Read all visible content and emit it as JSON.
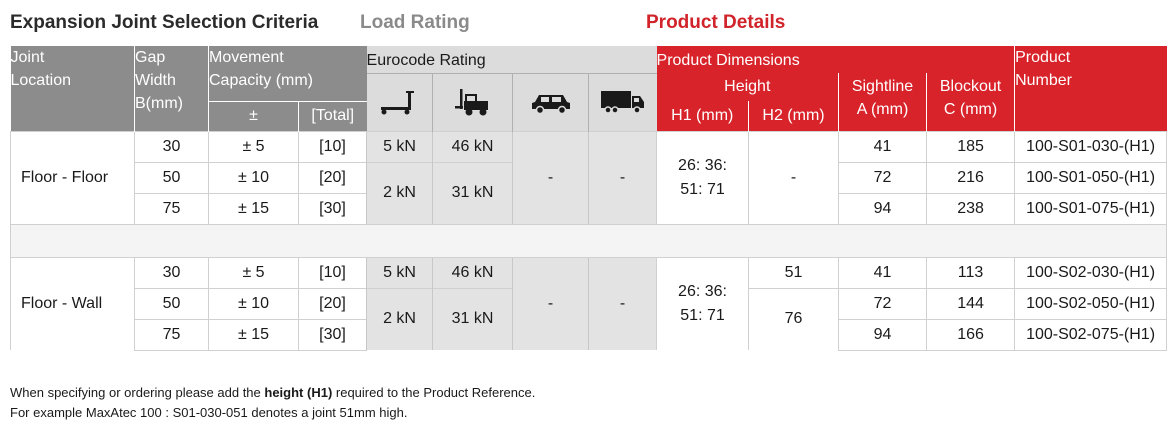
{
  "sections": {
    "selection": "Expansion Joint Selection Criteria",
    "load": "Load Rating",
    "product": "Product Details"
  },
  "header": {
    "joint_location": [
      "Joint",
      "Location"
    ],
    "gap_width": [
      "Gap",
      "Width",
      "B(mm)"
    ],
    "movement": [
      "Movement",
      "Capacity (mm)"
    ],
    "movement_pm": "±",
    "movement_total": "[Total]",
    "eurocode": "Eurocode Rating",
    "product_dimensions": "Product Dimensions",
    "height": "Height",
    "h1": "H1 (mm)",
    "h2": "H2 (mm)",
    "sightline": [
      "Sightline",
      "A (mm)"
    ],
    "blockout": [
      "Blockout",
      "C (mm)"
    ],
    "product_number": [
      "Product",
      "Number"
    ],
    "icons": [
      "pallet-truck-icon",
      "forklift-icon",
      "car-icon",
      "truck-icon"
    ]
  },
  "groups": [
    {
      "location": "Floor - Floor",
      "rating_a": {
        "r1": "5 kN",
        "r2": "46 kN"
      },
      "rating_b": {
        "r1": "2 kN",
        "r2": "31 kN"
      },
      "car": "-",
      "truck": "-",
      "h1": [
        "26: 36:",
        "51: 71"
      ],
      "rows": [
        {
          "gap": "30",
          "pm": "± 5",
          "total": "[10]",
          "sightline": "41",
          "blockout": "185",
          "product": "100-S01-030-(H1)"
        },
        {
          "gap": "50",
          "pm": "± 10",
          "total": "[20]",
          "sightline": "72",
          "blockout": "216",
          "product": "100-S01-050-(H1)"
        },
        {
          "gap": "75",
          "pm": "± 15",
          "total": "[30]",
          "sightline": "94",
          "blockout": "238",
          "product": "100-S01-075-(H1)"
        }
      ],
      "h2_merged": "-"
    },
    {
      "location": "Floor - Wall",
      "rating_a": {
        "r1": "5 kN",
        "r2": "46 kN"
      },
      "rating_b": {
        "r1": "2 kN",
        "r2": "31 kN"
      },
      "car": "-",
      "truck": "-",
      "h1": [
        "26: 36:",
        "51: 71"
      ],
      "rows": [
        {
          "gap": "30",
          "pm": "± 5",
          "total": "[10]",
          "sightline": "41",
          "blockout": "113",
          "product": "100-S02-030-(H1)"
        },
        {
          "gap": "50",
          "pm": "± 10",
          "total": "[20]",
          "sightline": "72",
          "blockout": "144",
          "product": "100-S02-050-(H1)"
        },
        {
          "gap": "75",
          "pm": "± 15",
          "total": "[30]",
          "sightline": "94",
          "blockout": "166",
          "product": "100-S02-075-(H1)"
        }
      ],
      "h2_first": "51",
      "h2_rest": "76"
    }
  ],
  "notes": {
    "line1_pre": "When specifying or ordering please add the ",
    "line1_bold": "height (H1)",
    "line1_post": " required to the Product Reference.",
    "line2": "For example MaxAtec 100 : S01-030-051 denotes a joint 51mm high."
  }
}
